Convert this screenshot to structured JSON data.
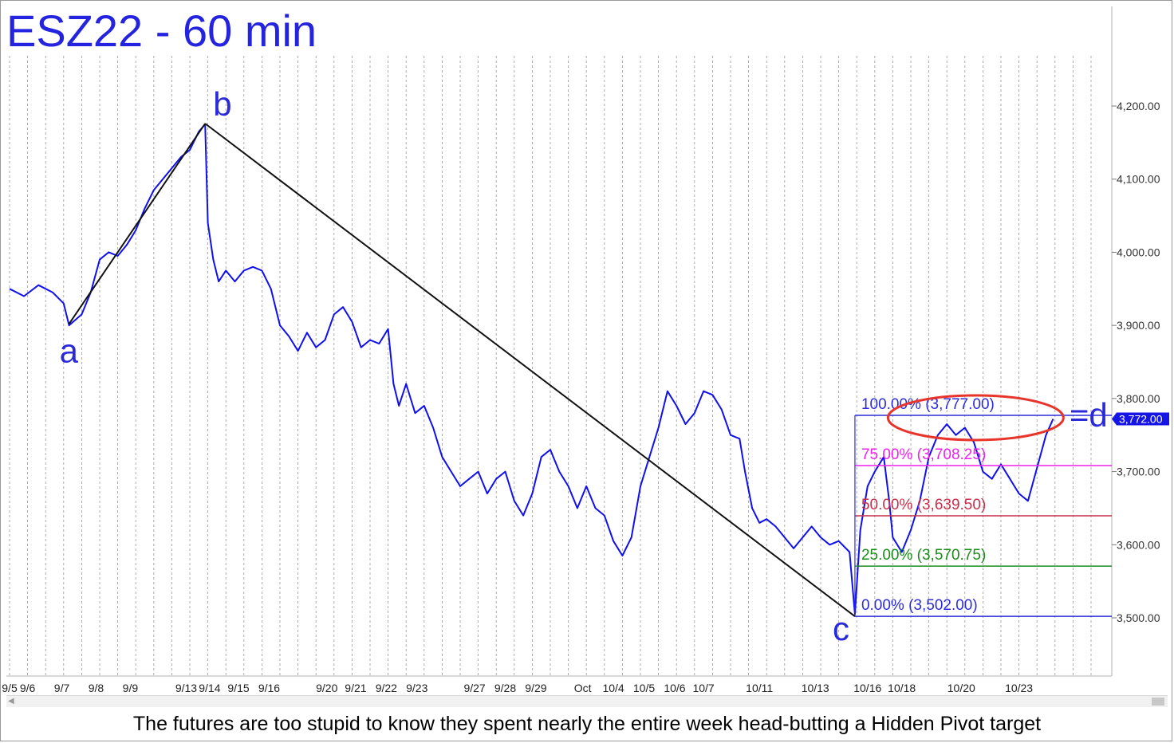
{
  "chart_data": {
    "type": "line",
    "title": "ESZ22 - 60 min",
    "caption": "The futures are too stupid to know they spent nearly the entire week head-butting a Hidden Pivot target",
    "x_tick_labels": [
      "9/5",
      "9/6",
      "9/7",
      "9/8",
      "9/9",
      "9/13",
      "9/14",
      "9/15",
      "9/16",
      "9/20",
      "9/21",
      "9/22",
      "9/23",
      "9/27",
      "9/28",
      "9/29",
      "Oct",
      "10/4",
      "10/5",
      "10/6",
      "10/7",
      "10/11",
      "10/13",
      "10/16",
      "10/18",
      "10/20",
      "10/23"
    ],
    "y_tick_labels": [
      "4,200.00",
      "4,100.00",
      "4,000.00",
      "3,900.00",
      "3,800.00",
      "3,700.00",
      "3,600.00",
      "3,500.00"
    ],
    "y_ticks": [
      4200,
      4100,
      4000,
      3900,
      3800,
      3700,
      3600,
      3500
    ],
    "ylim": [
      3440,
      4290
    ],
    "last_price_label": "3,772.00",
    "last_price": 3772,
    "grid": true,
    "series": [
      {
        "color": "#1010ee",
        "points": [
          [
            0,
            3950
          ],
          [
            0.8,
            3940
          ],
          [
            1.6,
            3955
          ],
          [
            2.4,
            3945
          ],
          [
            3.0,
            3930
          ],
          [
            3.3,
            3900
          ],
          [
            4.0,
            3915
          ],
          [
            4.5,
            3945
          ],
          [
            5.0,
            3990
          ],
          [
            5.5,
            4000
          ],
          [
            6.0,
            3995
          ],
          [
            6.5,
            4010
          ],
          [
            7.0,
            4030
          ],
          [
            7.5,
            4060
          ],
          [
            8.0,
            4085
          ],
          [
            8.5,
            4100
          ],
          [
            9.0,
            4115
          ],
          [
            9.5,
            4130
          ],
          [
            10.0,
            4140
          ],
          [
            10.5,
            4165
          ],
          [
            10.85,
            4175
          ],
          [
            11.0,
            4040
          ],
          [
            11.3,
            3990
          ],
          [
            11.6,
            3960
          ],
          [
            12.0,
            3975
          ],
          [
            12.5,
            3960
          ],
          [
            13.0,
            3975
          ],
          [
            13.5,
            3980
          ],
          [
            14.0,
            3975
          ],
          [
            14.5,
            3950
          ],
          [
            15.0,
            3900
          ],
          [
            15.5,
            3885
          ],
          [
            16.0,
            3865
          ],
          [
            16.5,
            3890
          ],
          [
            17.0,
            3870
          ],
          [
            17.5,
            3880
          ],
          [
            18.0,
            3915
          ],
          [
            18.5,
            3925
          ],
          [
            19.0,
            3905
          ],
          [
            19.5,
            3870
          ],
          [
            20.0,
            3880
          ],
          [
            20.5,
            3875
          ],
          [
            21.0,
            3895
          ],
          [
            21.3,
            3820
          ],
          [
            21.6,
            3790
          ],
          [
            22.0,
            3820
          ],
          [
            22.5,
            3780
          ],
          [
            23.0,
            3790
          ],
          [
            23.5,
            3760
          ],
          [
            24.0,
            3720
          ],
          [
            24.5,
            3700
          ],
          [
            25.0,
            3680
          ],
          [
            25.5,
            3690
          ],
          [
            26.0,
            3700
          ],
          [
            26.5,
            3670
          ],
          [
            27.0,
            3690
          ],
          [
            27.5,
            3700
          ],
          [
            28.0,
            3660
          ],
          [
            28.5,
            3640
          ],
          [
            29.0,
            3670
          ],
          [
            29.5,
            3720
          ],
          [
            30.0,
            3730
          ],
          [
            30.5,
            3700
          ],
          [
            31.0,
            3680
          ],
          [
            31.5,
            3650
          ],
          [
            32.0,
            3680
          ],
          [
            32.5,
            3650
          ],
          [
            33.0,
            3640
          ],
          [
            33.5,
            3605
          ],
          [
            34.0,
            3585
          ],
          [
            34.5,
            3610
          ],
          [
            35.0,
            3680
          ],
          [
            35.5,
            3720
          ],
          [
            36.0,
            3760
          ],
          [
            36.5,
            3810
          ],
          [
            37.0,
            3790
          ],
          [
            37.5,
            3765
          ],
          [
            38.0,
            3780
          ],
          [
            38.5,
            3810
          ],
          [
            39.0,
            3805
          ],
          [
            39.5,
            3785
          ],
          [
            40.0,
            3750
          ],
          [
            40.5,
            3745
          ],
          [
            40.8,
            3700
          ],
          [
            41.2,
            3650
          ],
          [
            41.6,
            3630
          ],
          [
            42.0,
            3635
          ],
          [
            42.5,
            3625
          ],
          [
            43.0,
            3610
          ],
          [
            43.5,
            3595
          ],
          [
            44.0,
            3610
          ],
          [
            44.5,
            3625
          ],
          [
            45.0,
            3610
          ],
          [
            45.5,
            3600
          ],
          [
            46.0,
            3605
          ],
          [
            46.6,
            3590
          ],
          [
            46.9,
            3505
          ],
          [
            47.2,
            3620
          ],
          [
            47.6,
            3680
          ],
          [
            48.0,
            3700
          ],
          [
            48.5,
            3720
          ],
          [
            48.8,
            3660
          ],
          [
            49.0,
            3610
          ],
          [
            49.5,
            3590
          ],
          [
            50.0,
            3620
          ],
          [
            50.5,
            3660
          ],
          [
            51.0,
            3720
          ],
          [
            51.5,
            3750
          ],
          [
            52.0,
            3765
          ],
          [
            52.5,
            3750
          ],
          [
            53.0,
            3760
          ],
          [
            53.5,
            3740
          ],
          [
            54.0,
            3700
          ],
          [
            54.5,
            3690
          ],
          [
            55.0,
            3710
          ],
          [
            55.5,
            3690
          ],
          [
            56.0,
            3670
          ],
          [
            56.5,
            3660
          ],
          [
            57.0,
            3705
          ],
          [
            57.5,
            3750
          ],
          [
            57.9,
            3772
          ]
        ]
      }
    ],
    "abcd_lines": [
      {
        "from": [
          3.3,
          3902
        ],
        "to": [
          10.85,
          4176
        ]
      },
      {
        "from": [
          10.85,
          4176
        ],
        "to": [
          46.9,
          3502
        ]
      }
    ],
    "wave_labels": [
      {
        "text": "a",
        "x": 3.3,
        "y": 3902
      },
      {
        "text": "b",
        "x": 10.85,
        "y": 4176
      },
      {
        "text": "c",
        "x": 46.9,
        "y": 3502
      },
      {
        "text": "=d",
        "x": 58.8,
        "y": 3777
      }
    ],
    "fib_levels": [
      {
        "label": "100.00% (3,777.00)",
        "value": 3777,
        "color": "#2c2cdc"
      },
      {
        "label": "75.00% (3,708.25)",
        "value": 3708.25,
        "color": "#ee22ee"
      },
      {
        "label": "50.00% (3,639.50)",
        "value": 3639.5,
        "color": "#c8304a"
      },
      {
        "label": "25.00% (3,570.75)",
        "value": 3570.75,
        "color": "#1a8c1a"
      },
      {
        "label": "0.00% (3,502.00)",
        "value": 3502,
        "color": "#2c2cdc"
      }
    ],
    "highlight_ellipse": {
      "color": "#e8352b"
    }
  }
}
